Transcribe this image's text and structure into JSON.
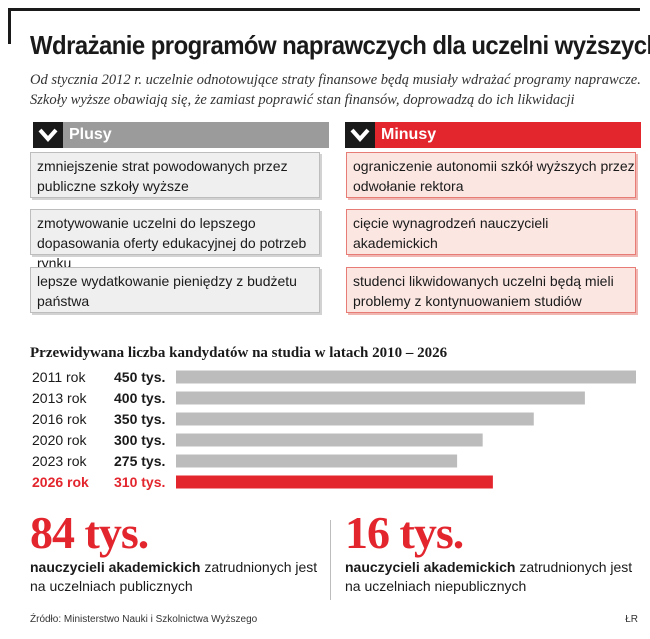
{
  "title": "Wdrażanie programów naprawczych dla uczelni wyższych",
  "lead": "Od stycznia 2012 r. uczelnie odnotowujące straty finansowe będą musiały wdrażać programy naprawcze. Szkoły wyższe obawiają się, że zamiast poprawić stan finansów, doprowadzą do ich likwidacji",
  "plusy": {
    "header": "Plusy",
    "items": [
      "zmniejszenie strat powodowanych przez publiczne szkoły wyższe",
      "zmotywowanie uczelni do lepszego dopasowania oferty edukacyjnej do potrzeb rynku",
      "lepsze wydatkowanie pieniędzy z budżetu państwa"
    ]
  },
  "minusy": {
    "header": "Minusy",
    "items": [
      "ograniczenie autonomii szkół wyższych przez odwołanie rektora",
      "cięcie wynagrodzeń nauczycieli akademickich",
      "studenci likwidowanych uczelni będą mieli problemy z kontynuowaniem studiów"
    ]
  },
  "chart_data": {
    "type": "bar",
    "orientation": "horizontal",
    "title": "Przewidywana liczba kandydatów na studia w latach 2010 – 2026",
    "categories": [
      "2011 rok",
      "2013 rok",
      "2016 rok",
      "2020 rok",
      "2023 rok",
      "2026 rok"
    ],
    "values": [
      450,
      400,
      350,
      300,
      275,
      310
    ],
    "value_labels": [
      "450 tys.",
      "400 tys.",
      "350 tys.",
      "300 tys.",
      "275 tys.",
      "310 tys."
    ],
    "unit": "tys.",
    "highlight_index": 5,
    "colors": {
      "bar": "#bcbcbc",
      "highlight": "#e3262e",
      "text": "#1a1a1a"
    },
    "grid": false,
    "legend": "none"
  },
  "stats": [
    {
      "number": "84 tys.",
      "bold": "nauczycieli akademickich",
      "rest": " zatrudnionych jest na uczelniach publicznych"
    },
    {
      "number": "16 tys.",
      "bold": "nauczycieli akademickich",
      "rest": " zatrudnionych jest na uczelniach niepublicznych"
    }
  ],
  "source": "Źródło: Ministerstwo Nauki i Szkolnictwa Wyższego",
  "credit": "ŁR",
  "colors": {
    "accent": "#e3262e",
    "neutral": "#9b9b9b"
  }
}
